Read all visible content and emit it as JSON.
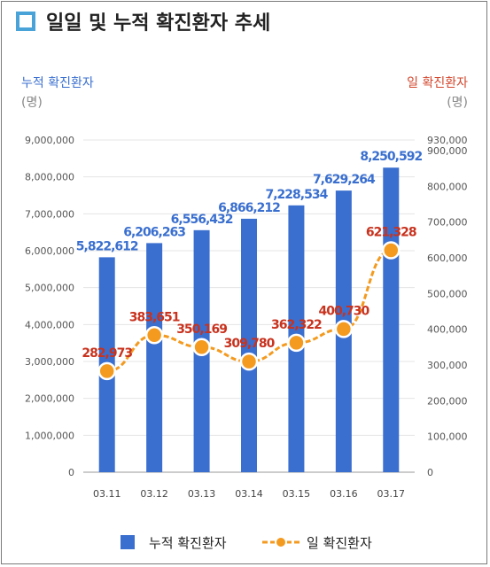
{
  "title": "일일 및 누적 확진환자 추세",
  "colors": {
    "bar": "#3a6fcf",
    "line": "#f39a1f",
    "left_axis_label": "#3a6fcf",
    "right_axis_label": "#d2462c",
    "bar_label": "#3a6fcf",
    "line_label": "#c8321e",
    "title_icon": "#4aa3d8"
  },
  "chart_data": {
    "type": "bar",
    "categories": [
      "03.11",
      "03.12",
      "03.13",
      "03.14",
      "03.15",
      "03.16",
      "03.17"
    ],
    "series": [
      {
        "name": "누적 확진환자",
        "type": "bar",
        "axis": "left",
        "values": [
          5822612,
          6206263,
          6556432,
          6866212,
          7228534,
          7629264,
          8250592
        ],
        "labels": [
          "5,822,612",
          "6,206,263",
          "6,556,432",
          "6,866,212",
          "7,228,534",
          "7,629,264",
          "8,250,592"
        ]
      },
      {
        "name": "일 확진환자",
        "type": "line",
        "axis": "right",
        "values": [
          282973,
          383651,
          350169,
          309780,
          362322,
          400730,
          621328
        ],
        "labels": [
          "282,973",
          "383,651",
          "350,169",
          "309,780",
          "362,322",
          "400,730",
          "621,328"
        ]
      }
    ],
    "y_left": {
      "label": "누적 확진환자",
      "unit": "(명)",
      "ylim": [
        0,
        9000000
      ],
      "ticks": [
        "0",
        "1,000,000",
        "2,000,000",
        "3,000,000",
        "4,000,000",
        "5,000,000",
        "6,000,000",
        "7,000,000",
        "8,000,000",
        "9,000,000"
      ]
    },
    "y_right": {
      "label": "일 확진환자",
      "unit": "(명)",
      "ylim": [
        0,
        930000
      ],
      "ticks": [
        "0",
        "100,000",
        "200,000",
        "300,000",
        "400,000",
        "500,000",
        "600,000",
        "700,000",
        "800,000",
        "900,000",
        "930,000"
      ]
    },
    "grid": true,
    "legend_position": "bottom",
    "legend": [
      "누적 확진환자",
      "일 확진환자"
    ]
  }
}
